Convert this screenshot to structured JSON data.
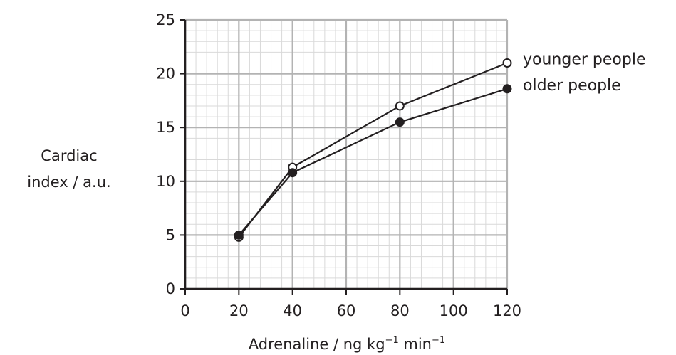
{
  "chart_data": {
    "type": "line",
    "x": [
      20,
      40,
      80,
      120
    ],
    "series": [
      {
        "name": "younger people",
        "values": [
          4.8,
          11.3,
          17.0,
          21.0
        ],
        "marker": "open-circle",
        "color": "#231f20"
      },
      {
        "name": "older people",
        "values": [
          5.0,
          10.8,
          15.5,
          18.6
        ],
        "marker": "filled-circle",
        "color": "#231f20"
      }
    ],
    "xticks": [
      "0",
      "20",
      "40",
      "60",
      "80",
      "100",
      "120"
    ],
    "yticks": [
      "0",
      "5",
      "10",
      "15",
      "20",
      "25"
    ],
    "xlim": [
      0,
      120
    ],
    "ylim": [
      0,
      25
    ],
    "xlabel": {
      "main": "Adrenaline / ng kg",
      "sup1": "−1",
      "unit2": " min",
      "sup2": "−1"
    },
    "ylabel": {
      "line1": "Cardiac",
      "line2": "index / a.u."
    },
    "grid": true,
    "minor_grid": true,
    "legend": "right, at line ends",
    "colors": {
      "major_grid": "#b3b3b3",
      "minor_grid": "#d9d9d9",
      "axis": "#231f20"
    }
  }
}
